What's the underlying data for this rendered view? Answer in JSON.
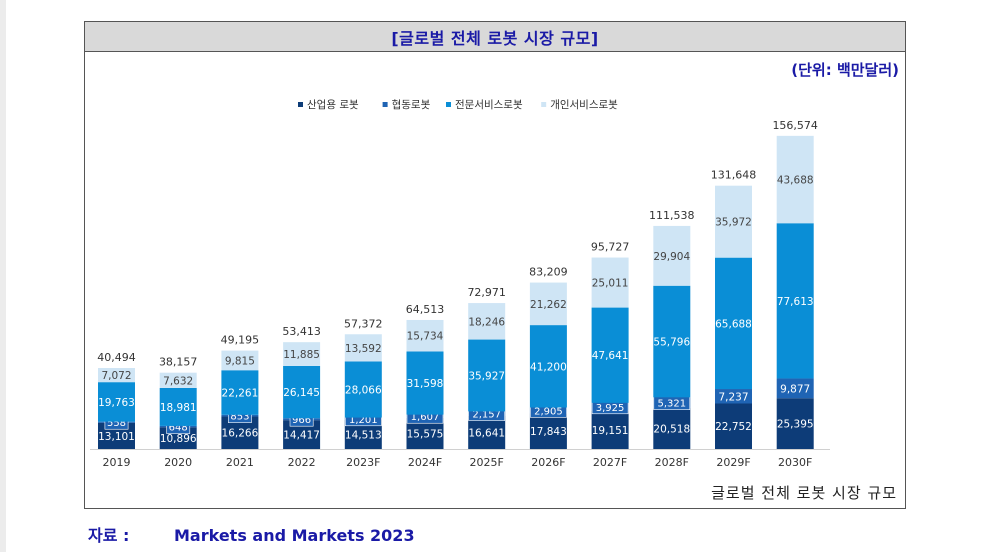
{
  "title": "[글로벌 전체 로봇 시장 규모]",
  "unit": "(단위: 백만달러)",
  "caption": "글로벌 전체 로봇 시장 규모",
  "source": {
    "label": "자료 :",
    "value": "Markets and Markets 2023"
  },
  "colors": {
    "industrial": "#0d3c78",
    "collaborative": "#1f64b4",
    "professional": "#0a8ed6",
    "personal": "#cfe5f5"
  },
  "chart_data": {
    "type": "bar",
    "stacked": true,
    "categories": [
      "2019",
      "2020",
      "2021",
      "2022",
      "2023F",
      "2024F",
      "2025F",
      "2026F",
      "2027F",
      "2028F",
      "2029F",
      "2030F"
    ],
    "series": [
      {
        "name": "산업용 로봇",
        "values": [
          13101,
          10896,
          16266,
          14417,
          14513,
          15575,
          16641,
          17843,
          19151,
          20518,
          22752,
          25395
        ]
      },
      {
        "name": "협동로봇",
        "values": [
          558,
          648,
          853,
          966,
          1201,
          1607,
          2157,
          2905,
          3925,
          5321,
          7237,
          9877
        ]
      },
      {
        "name": "전문서비스로봇",
        "values": [
          19763,
          18981,
          22261,
          26145,
          28066,
          31598,
          35927,
          41200,
          47641,
          55796,
          65688,
          77613
        ]
      },
      {
        "name": "개인서비스로봇",
        "values": [
          7072,
          7632,
          9815,
          11885,
          13592,
          15734,
          18246,
          21262,
          25011,
          29904,
          35972,
          43688
        ]
      }
    ],
    "totals": [
      40494,
      38157,
      49195,
      53413,
      57372,
      64513,
      72971,
      83209,
      95727,
      111538,
      131648,
      156574
    ],
    "legend_position": "top-center",
    "grid": false,
    "ylim": [
      0,
      160000
    ]
  }
}
